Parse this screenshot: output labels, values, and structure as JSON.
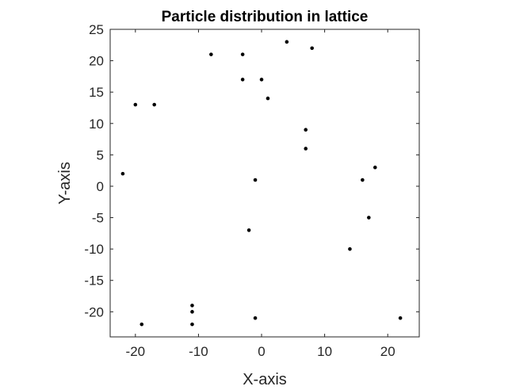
{
  "chart_data": {
    "type": "scatter",
    "title": "Particle distribution in lattice",
    "xlabel": "X-axis",
    "ylabel": "Y-axis",
    "xlim": [
      -24,
      25
    ],
    "ylim": [
      -24,
      25
    ],
    "xticks": [
      -20,
      -10,
      0,
      10,
      20
    ],
    "yticks": [
      25,
      20,
      15,
      10,
      5,
      0,
      -5,
      -10,
      -15,
      -20
    ],
    "grid": false,
    "legend": "none",
    "marker_color": "#000000",
    "axis_color": "#262626",
    "points": [
      {
        "x": 4,
        "y": 23
      },
      {
        "x": 8,
        "y": 22
      },
      {
        "x": -8,
        "y": 21
      },
      {
        "x": -3,
        "y": 21
      },
      {
        "x": -3,
        "y": 17
      },
      {
        "x": 0,
        "y": 17
      },
      {
        "x": 1,
        "y": 14
      },
      {
        "x": -20,
        "y": 13
      },
      {
        "x": -17,
        "y": 13
      },
      {
        "x": 7,
        "y": 9
      },
      {
        "x": 7,
        "y": 6
      },
      {
        "x": -22,
        "y": 2
      },
      {
        "x": 18,
        "y": 3
      },
      {
        "x": -1,
        "y": 1
      },
      {
        "x": 16,
        "y": 1
      },
      {
        "x": 17,
        "y": -5
      },
      {
        "x": -2,
        "y": -7
      },
      {
        "x": 14,
        "y": -10
      },
      {
        "x": -11,
        "y": -19
      },
      {
        "x": -11,
        "y": -20
      },
      {
        "x": -19,
        "y": -22
      },
      {
        "x": -11,
        "y": -22
      },
      {
        "x": -1,
        "y": -21
      },
      {
        "x": 22,
        "y": -21
      }
    ]
  }
}
